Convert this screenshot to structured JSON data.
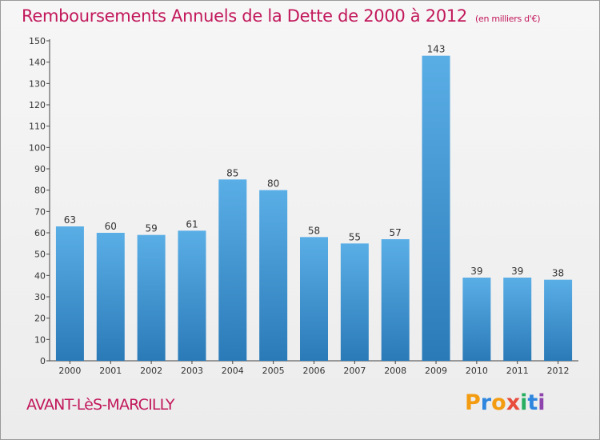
{
  "header": {
    "title": "Remboursements Annuels de la Dette de 2000 à 2012",
    "unit_note": "(en milliers d'€)"
  },
  "footer": {
    "town": "AVANT-LèS-MARCILLY",
    "brand": "Proxiti"
  },
  "colors": {
    "title": "#c2185b",
    "bar_top": "#5aaee6",
    "bar_bottom": "#2a7ab8",
    "brand_letters": [
      "#f39c12",
      "#2e86de",
      "#f39c12",
      "#e74c3c",
      "#27ae60",
      "#2e86de",
      "#8e44ad"
    ]
  },
  "chart_data": {
    "type": "bar",
    "title": "Remboursements Annuels de la Dette de 2000 à 2012",
    "subtitle": "(en milliers d'€)",
    "xlabel": "",
    "ylabel": "",
    "categories": [
      "2000",
      "2001",
      "2002",
      "2003",
      "2004",
      "2005",
      "2006",
      "2007",
      "2008",
      "2009",
      "2010",
      "2011",
      "2012"
    ],
    "values": [
      63,
      60,
      59,
      61,
      85,
      80,
      58,
      55,
      57,
      143,
      39,
      39,
      38
    ],
    "ylim": [
      0,
      150
    ],
    "yticks": [
      0,
      10,
      20,
      30,
      40,
      50,
      60,
      70,
      80,
      90,
      100,
      110,
      120,
      130,
      140,
      150
    ],
    "grid": false,
    "data_labels": true
  }
}
